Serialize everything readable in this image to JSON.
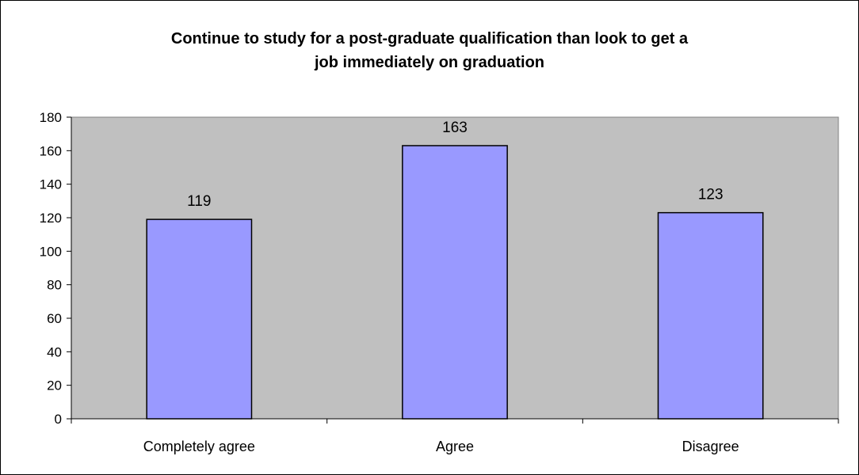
{
  "chart_data": {
    "type": "bar",
    "title_lines": [
      "Continue to study for a post-graduate qualification than look to get a",
      "job immediately on graduation"
    ],
    "categories": [
      "Completely agree",
      "Agree",
      "Disagree"
    ],
    "values": [
      119,
      163,
      123
    ],
    "data_labels": [
      "119",
      "163",
      "123"
    ],
    "ylim": [
      0,
      180
    ],
    "yticks": [
      0,
      20,
      40,
      60,
      80,
      100,
      120,
      140,
      160,
      180
    ],
    "grid": false,
    "legend": "none",
    "colors": {
      "bar_fill": "#9999ff",
      "bar_stroke": "#000000",
      "plot_background": "#c0c0c0"
    }
  }
}
